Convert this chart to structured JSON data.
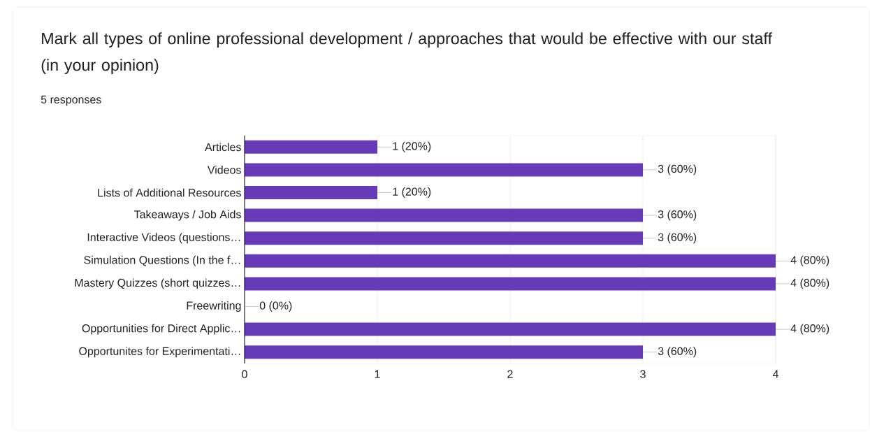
{
  "chart_data": {
    "type": "bar",
    "orientation": "horizontal",
    "title": "Mark all types of online professional development / approaches that would be effective with our staff (in your opinion)",
    "subtitle": "5 responses",
    "categories": [
      "Articles",
      "Videos",
      "Lists of Additional Resources",
      "Takeaways / Job Aids",
      "Interactive Videos (questions…",
      "Simulation Questions (In the f…",
      "Mastery Quizzes (short quizzes…",
      "Freewriting",
      "Opportunities for Direct Applic…",
      "Opportunites for Experimentati…"
    ],
    "values": [
      1,
      3,
      1,
      3,
      3,
      4,
      4,
      0,
      4,
      3
    ],
    "value_labels": [
      "1 (20%)",
      "3 (60%)",
      "1 (20%)",
      "3 (60%)",
      "3 (60%)",
      "4 (80%)",
      "4 (80%)",
      "0 (0%)",
      "4 (80%)",
      "3 (60%)"
    ],
    "color": "#673ab7",
    "xlim": [
      0,
      4
    ],
    "xticks": [
      0,
      1,
      2,
      3,
      4
    ],
    "grid": "x"
  }
}
